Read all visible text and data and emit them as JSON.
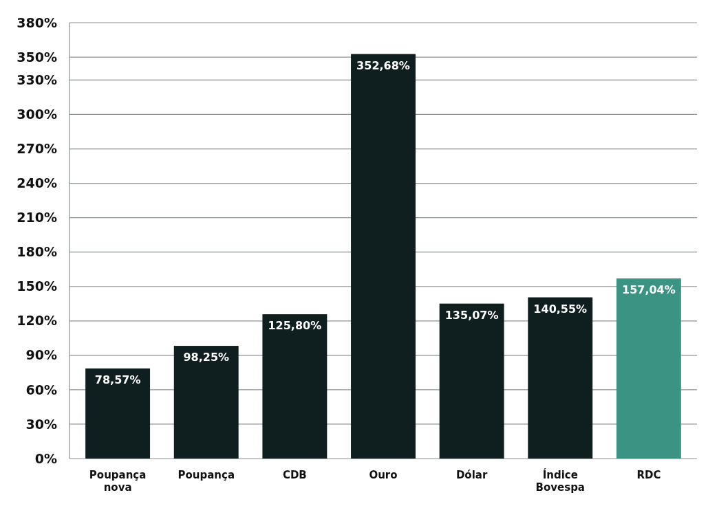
{
  "chart_data": {
    "type": "bar",
    "categories": [
      "Poupança nova",
      "Poupança",
      "CDB",
      "Ouro",
      "Dólar",
      "Índice Bovespa",
      "RDC"
    ],
    "values": [
      78.57,
      98.25,
      125.8,
      352.68,
      135.07,
      140.55,
      157.04
    ],
    "colors": [
      "#0f1e1e",
      "#0f1e1e",
      "#0f1e1e",
      "#0f1e1e",
      "#0f1e1e",
      "#0f1e1e",
      "#3b9483"
    ],
    "value_labels": [
      "78,57%",
      "98,25%",
      "125,80%",
      "352,68%",
      "135,07%",
      "140,55%",
      "157,04%"
    ],
    "ylim": [
      0,
      380
    ],
    "yticks": [
      {
        "value": 0,
        "label": "0%"
      },
      {
        "value": 30,
        "label": "30%"
      },
      {
        "value": 60,
        "label": "60%"
      },
      {
        "value": 90,
        "label": "90%"
      },
      {
        "value": 120,
        "label": "120%"
      },
      {
        "value": 150,
        "label": "150%"
      },
      {
        "value": 180,
        "label": "180%"
      },
      {
        "value": 210,
        "label": "210%"
      },
      {
        "value": 240,
        "label": "240%"
      },
      {
        "value": 270,
        "label": "270%"
      },
      {
        "value": 300,
        "label": "300%"
      },
      {
        "value": 330,
        "label": "330%"
      },
      {
        "value": 350,
        "label": "350%"
      },
      {
        "value": 380,
        "label": "380%"
      }
    ],
    "grid": "y"
  }
}
